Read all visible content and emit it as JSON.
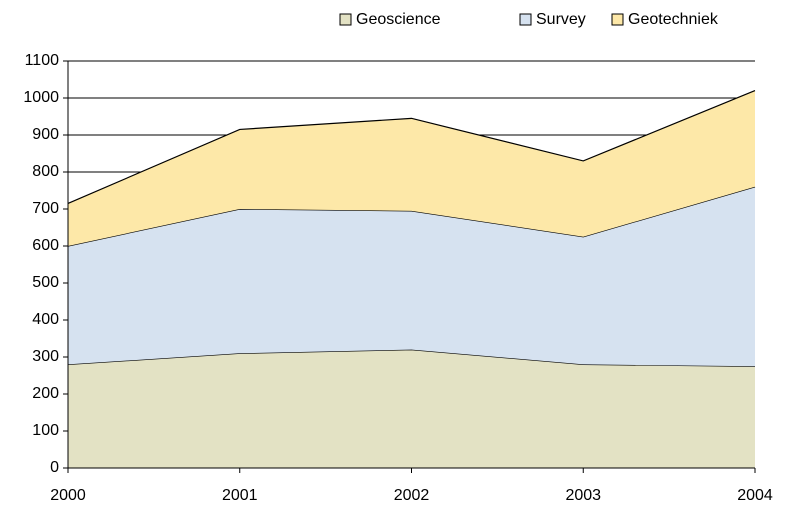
{
  "chart_data": {
    "type": "stacked-area",
    "categories": [
      "2000",
      "2001",
      "2002",
      "2003",
      "2004"
    ],
    "series": [
      {
        "name": "Geoscience",
        "color": "#e3e2c4",
        "values": [
          280,
          310,
          320,
          280,
          275
        ]
      },
      {
        "name": "Survey",
        "color": "#d6e2f0",
        "values": [
          320,
          390,
          375,
          345,
          485
        ]
      },
      {
        "name": "Geotechniek",
        "color": "#fde8a8",
        "values": [
          115,
          215,
          250,
          205,
          260
        ]
      }
    ],
    "ylim": [
      0,
      1100
    ],
    "yticks": [
      0,
      100,
      200,
      300,
      400,
      500,
      600,
      700,
      800,
      900,
      1000,
      1100
    ],
    "grid": true,
    "legend": "top"
  }
}
